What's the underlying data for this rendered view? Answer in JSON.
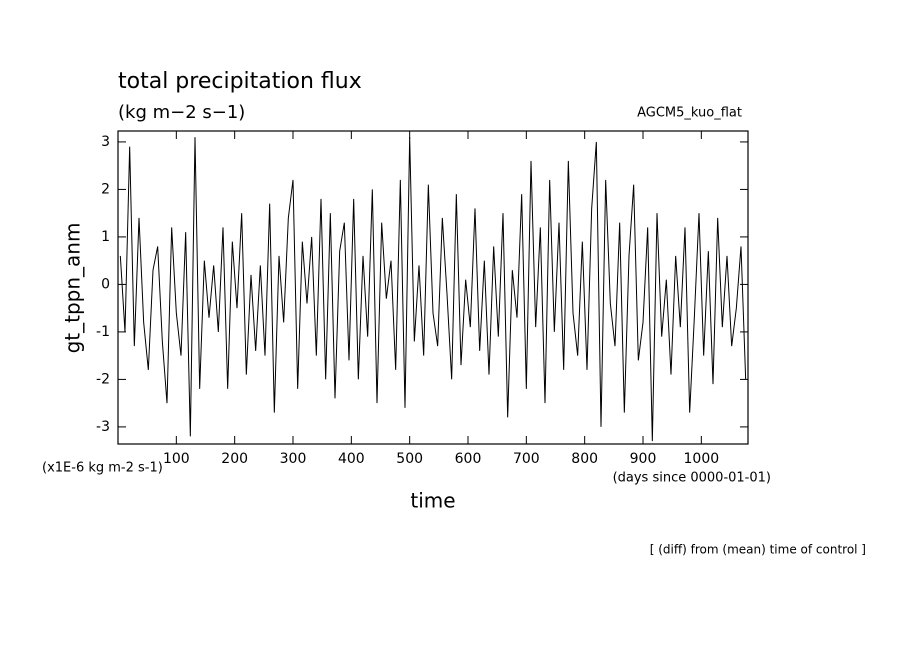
{
  "chart_data": {
    "type": "line",
    "title": "total precipitation flux",
    "subtitle": "(kg m−2 s−1)",
    "annotation_right": "AGCM5_kuo_flat",
    "y_label": "gt_tppn_anm",
    "x_label": "time",
    "y_unit_note": "(x1E-6 kg m-2 s-1)",
    "x_unit_note": "(days since 0000-01-01)",
    "footer": "[ (diff) from (mean) time of control ]",
    "xlim": [
      0,
      1080
    ],
    "ylim": [
      -3.36,
      3.23
    ],
    "xticks": [
      100,
      200,
      300,
      400,
      500,
      600,
      700,
      800,
      900,
      1000
    ],
    "yticks": [
      -3,
      -2,
      -1,
      0,
      1,
      2,
      3
    ],
    "color": "#000000",
    "x": [
      4,
      12,
      20,
      28,
      36,
      44,
      52,
      60,
      68,
      76,
      84,
      92,
      100,
      108,
      116,
      124,
      132,
      140,
      148,
      156,
      164,
      172,
      180,
      188,
      196,
      204,
      212,
      220,
      228,
      236,
      244,
      252,
      260,
      268,
      276,
      284,
      292,
      300,
      308,
      316,
      324,
      332,
      340,
      348,
      356,
      364,
      372,
      380,
      388,
      396,
      404,
      412,
      420,
      428,
      436,
      444,
      452,
      460,
      468,
      476,
      484,
      492,
      500,
      508,
      516,
      524,
      532,
      540,
      548,
      556,
      564,
      572,
      580,
      588,
      596,
      604,
      612,
      620,
      628,
      636,
      644,
      652,
      660,
      668,
      676,
      684,
      692,
      700,
      708,
      716,
      724,
      732,
      740,
      748,
      756,
      764,
      772,
      780,
      788,
      796,
      804,
      812,
      820,
      828,
      836,
      844,
      852,
      860,
      868,
      876,
      884,
      892,
      900,
      908,
      916,
      924,
      932,
      940,
      948,
      956,
      964,
      972,
      980,
      988,
      996,
      1004,
      1012,
      1020,
      1028,
      1036,
      1044,
      1052,
      1060,
      1068,
      1076
    ],
    "values": [
      0.6,
      -1.0,
      2.9,
      -1.3,
      1.4,
      -0.8,
      -1.8,
      0.3,
      0.8,
      -1.2,
      -2.5,
      1.2,
      -0.6,
      -1.5,
      1.1,
      -3.2,
      3.1,
      -2.2,
      0.5,
      -0.7,
      0.4,
      -1.0,
      1.2,
      -2.2,
      0.9,
      -0.5,
      1.5,
      -1.9,
      0.2,
      -1.4,
      0.4,
      -1.5,
      1.7,
      -2.7,
      0.6,
      -0.8,
      1.4,
      2.2,
      -2.2,
      0.9,
      -0.4,
      1.0,
      -1.5,
      1.8,
      -2.0,
      1.5,
      -2.4,
      0.7,
      1.3,
      -1.6,
      1.8,
      -2.0,
      0.6,
      -1.1,
      2.0,
      -2.5,
      1.3,
      -0.3,
      0.5,
      -1.8,
      2.2,
      -2.6,
      3.1,
      -1.2,
      0.4,
      -1.5,
      2.1,
      -0.6,
      -1.3,
      1.4,
      -0.2,
      -2.0,
      1.9,
      -1.7,
      0.1,
      -0.9,
      1.6,
      -1.4,
      0.5,
      -1.9,
      0.8,
      -1.1,
      1.5,
      -2.8,
      0.3,
      -0.7,
      1.9,
      -2.2,
      2.6,
      -0.9,
      1.2,
      -2.5,
      2.2,
      -1.0,
      1.3,
      -1.8,
      2.6,
      -0.6,
      -1.5,
      0.9,
      -1.8,
      1.6,
      3.0,
      -3.0,
      2.2,
      -0.4,
      -1.3,
      1.3,
      -2.7,
      0.6,
      2.1,
      -1.6,
      -0.8,
      1.2,
      -3.3,
      1.5,
      -1.1,
      0.1,
      -1.9,
      0.6,
      -0.9,
      1.2,
      -2.7,
      -0.7,
      1.5,
      -1.5,
      0.7,
      -2.1,
      1.4,
      -0.9,
      0.6,
      -1.3,
      -0.5,
      0.8,
      -2.0
    ]
  }
}
